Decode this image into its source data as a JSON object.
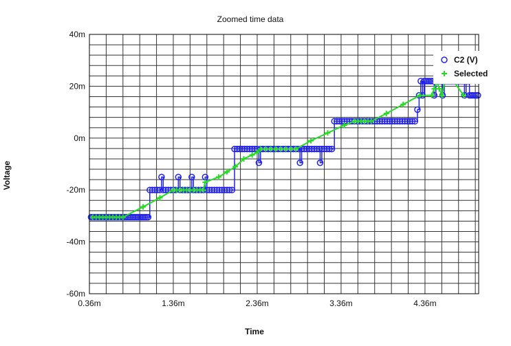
{
  "chart_data": {
    "type": "scatter",
    "title": "Zoomed time data",
    "xlabel": "Time",
    "ylabel": "Voltage",
    "xlim": [
      0.36,
      5.0
    ],
    "ylim": [
      -60,
      40
    ],
    "x_unit_suffix": "m",
    "y_unit_suffix": "m",
    "x_tick_labels": [
      "0.36m",
      "1.36m",
      "2.36m",
      "3.36m",
      "4.36m"
    ],
    "x_tick_values": [
      0.36,
      1.36,
      2.36,
      3.36,
      4.36
    ],
    "y_tick_labels": [
      "40m",
      "20m",
      "0m",
      "-20m",
      "-40m",
      "-60m"
    ],
    "y_tick_values": [
      40,
      20,
      0,
      -20,
      -40,
      -60
    ],
    "grid": true,
    "legend_position": "top-right",
    "colors": {
      "c2": "#2222ee",
      "selected": "#22dd22",
      "grid": "#333333"
    },
    "series": [
      {
        "name": "C2 (V)",
        "marker": "circle",
        "style": "line+markers",
        "points": [
          [
            0.38,
            -30.5
          ],
          [
            0.4,
            -30.5
          ],
          [
            0.42,
            -30.5
          ],
          [
            0.44,
            -30.5
          ],
          [
            0.46,
            -30.5
          ],
          [
            0.48,
            -30.5
          ],
          [
            0.5,
            -30.5
          ],
          [
            0.52,
            -30.5
          ],
          [
            0.54,
            -30.5
          ],
          [
            0.56,
            -30.5
          ],
          [
            0.58,
            -30.5
          ],
          [
            0.6,
            -30.5
          ],
          [
            0.62,
            -30.5
          ],
          [
            0.64,
            -30.5
          ],
          [
            0.66,
            -30.5
          ],
          [
            0.68,
            -30.5
          ],
          [
            0.7,
            -30.5
          ],
          [
            0.72,
            -30.5
          ],
          [
            0.74,
            -30.5
          ],
          [
            0.76,
            -30.5
          ],
          [
            0.78,
            -30.5
          ],
          [
            0.8,
            -30.5
          ],
          [
            0.82,
            -30.5
          ],
          [
            0.84,
            -30.5
          ],
          [
            0.86,
            -30.5
          ],
          [
            0.88,
            -30.5
          ],
          [
            0.9,
            -30.5
          ],
          [
            0.92,
            -30.5
          ],
          [
            0.94,
            -30.5
          ],
          [
            0.96,
            -30.5
          ],
          [
            0.98,
            -30.5
          ],
          [
            1.0,
            -30.5
          ],
          [
            1.02,
            -30.5
          ],
          [
            1.04,
            -30.5
          ],
          [
            1.06,
            -30.5
          ],
          [
            1.08,
            -20
          ],
          [
            1.11,
            -20
          ],
          [
            1.14,
            -20
          ],
          [
            1.17,
            -20
          ],
          [
            1.2,
            -20
          ],
          [
            1.22,
            -15
          ],
          [
            1.24,
            -20
          ],
          [
            1.27,
            -20
          ],
          [
            1.3,
            -20
          ],
          [
            1.33,
            -20
          ],
          [
            1.36,
            -20
          ],
          [
            1.39,
            -20
          ],
          [
            1.42,
            -15
          ],
          [
            1.44,
            -20
          ],
          [
            1.47,
            -20
          ],
          [
            1.5,
            -20
          ],
          [
            1.53,
            -20
          ],
          [
            1.56,
            -20
          ],
          [
            1.58,
            -15
          ],
          [
            1.6,
            -20
          ],
          [
            1.63,
            -20
          ],
          [
            1.66,
            -20
          ],
          [
            1.69,
            -20
          ],
          [
            1.72,
            -20
          ],
          [
            1.74,
            -15
          ],
          [
            1.76,
            -20
          ],
          [
            1.79,
            -20
          ],
          [
            1.82,
            -20
          ],
          [
            1.85,
            -20
          ],
          [
            1.88,
            -20
          ],
          [
            1.91,
            -20
          ],
          [
            1.94,
            -20
          ],
          [
            1.97,
            -20
          ],
          [
            2.0,
            -20
          ],
          [
            2.03,
            -20
          ],
          [
            2.06,
            -20
          ],
          [
            2.09,
            -4.2
          ],
          [
            2.12,
            -4.2
          ],
          [
            2.15,
            -4.2
          ],
          [
            2.18,
            -4.2
          ],
          [
            2.21,
            -4.2
          ],
          [
            2.24,
            -4.2
          ],
          [
            2.27,
            -4.2
          ],
          [
            2.3,
            -4.2
          ],
          [
            2.33,
            -4.2
          ],
          [
            2.36,
            -4.2
          ],
          [
            2.38,
            -9.5
          ],
          [
            2.4,
            -4.2
          ],
          [
            2.43,
            -4.2
          ],
          [
            2.46,
            -4.2
          ],
          [
            2.49,
            -4.2
          ],
          [
            2.52,
            -4.2
          ],
          [
            2.55,
            -4.2
          ],
          [
            2.58,
            -4.2
          ],
          [
            2.61,
            -4.2
          ],
          [
            2.64,
            -4.2
          ],
          [
            2.67,
            -4.2
          ],
          [
            2.7,
            -4.2
          ],
          [
            2.73,
            -4.2
          ],
          [
            2.76,
            -4.2
          ],
          [
            2.79,
            -4.2
          ],
          [
            2.82,
            -4.2
          ],
          [
            2.85,
            -4.2
          ],
          [
            2.87,
            -9.5
          ],
          [
            2.89,
            -4.2
          ],
          [
            2.92,
            -4.2
          ],
          [
            2.95,
            -4.2
          ],
          [
            2.98,
            -4.2
          ],
          [
            3.01,
            -4.2
          ],
          [
            3.04,
            -4.2
          ],
          [
            3.07,
            -4.2
          ],
          [
            3.1,
            -4.2
          ],
          [
            3.11,
            -9.5
          ],
          [
            3.13,
            -4.2
          ],
          [
            3.16,
            -4.2
          ],
          [
            3.19,
            -4.2
          ],
          [
            3.22,
            -4.2
          ],
          [
            3.25,
            -4.2
          ],
          [
            3.28,
            6.5
          ],
          [
            3.31,
            6.5
          ],
          [
            3.34,
            6.5
          ],
          [
            3.37,
            6.5
          ],
          [
            3.4,
            6.5
          ],
          [
            3.43,
            6.5
          ],
          [
            3.46,
            6.5
          ],
          [
            3.49,
            6.5
          ],
          [
            3.52,
            6.5
          ],
          [
            3.55,
            6.5
          ],
          [
            3.58,
            6.5
          ],
          [
            3.61,
            6.5
          ],
          [
            3.64,
            6.5
          ],
          [
            3.67,
            6.5
          ],
          [
            3.7,
            6.5
          ],
          [
            3.73,
            6.5
          ],
          [
            3.76,
            6.5
          ],
          [
            3.79,
            6.5
          ],
          [
            3.82,
            6.5
          ],
          [
            3.85,
            6.5
          ],
          [
            3.88,
            6.5
          ],
          [
            3.91,
            6.5
          ],
          [
            3.94,
            6.5
          ],
          [
            3.97,
            6.5
          ],
          [
            4.0,
            6.5
          ],
          [
            4.03,
            6.5
          ],
          [
            4.06,
            6.5
          ],
          [
            4.09,
            6.5
          ],
          [
            4.12,
            6.5
          ],
          [
            4.15,
            6.5
          ],
          [
            4.18,
            6.5
          ],
          [
            4.21,
            6.5
          ],
          [
            4.24,
            6.5
          ],
          [
            4.27,
            11
          ],
          [
            4.29,
            16.5
          ],
          [
            4.31,
            22
          ],
          [
            4.33,
            16.5
          ],
          [
            4.35,
            22
          ],
          [
            4.37,
            22
          ],
          [
            4.39,
            22
          ],
          [
            4.41,
            22
          ],
          [
            4.43,
            22
          ],
          [
            4.45,
            22
          ],
          [
            4.47,
            16.5
          ],
          [
            4.49,
            22
          ],
          [
            4.51,
            22
          ],
          [
            4.53,
            22
          ],
          [
            4.55,
            22
          ],
          [
            4.57,
            16.5
          ],
          [
            4.59,
            22
          ],
          [
            4.61,
            22
          ],
          [
            4.63,
            22
          ],
          [
            4.65,
            22
          ],
          [
            4.67,
            22
          ],
          [
            4.69,
            22
          ],
          [
            4.71,
            22
          ],
          [
            4.73,
            22
          ],
          [
            4.75,
            22
          ],
          [
            4.77,
            22
          ],
          [
            4.79,
            22
          ],
          [
            4.81,
            22
          ],
          [
            4.83,
            16.5
          ],
          [
            4.85,
            22
          ],
          [
            4.87,
            22
          ],
          [
            4.89,
            16.5
          ],
          [
            4.91,
            16.5
          ],
          [
            4.93,
            16.5
          ],
          [
            4.95,
            16.5
          ],
          [
            4.97,
            16.5
          ],
          [
            4.99,
            16.5
          ]
        ]
      },
      {
        "name": "Selected",
        "marker": "plus",
        "style": "line+markers",
        "points": [
          [
            0.4,
            -30.5
          ],
          [
            0.44,
            -30.5
          ],
          [
            0.48,
            -30.5
          ],
          [
            0.52,
            -30.5
          ],
          [
            0.56,
            -30.5
          ],
          [
            0.6,
            -30.5
          ],
          [
            0.64,
            -30.5
          ],
          [
            0.68,
            -30.5
          ],
          [
            0.72,
            -30.5
          ],
          [
            0.76,
            -30.5
          ],
          [
            1.0,
            -26.5
          ],
          [
            1.2,
            -23
          ],
          [
            1.36,
            -20
          ],
          [
            1.4,
            -20
          ],
          [
            1.44,
            -20
          ],
          [
            1.48,
            -20
          ],
          [
            1.52,
            -20
          ],
          [
            1.56,
            -20
          ],
          [
            1.6,
            -20
          ],
          [
            1.64,
            -20
          ],
          [
            1.68,
            -20
          ],
          [
            1.72,
            -20
          ],
          [
            1.74,
            -17
          ],
          [
            1.9,
            -15
          ],
          [
            2.0,
            -13
          ],
          [
            2.1,
            -11
          ],
          [
            2.2,
            -8
          ],
          [
            2.3,
            -6.5
          ],
          [
            2.36,
            -5.5
          ],
          [
            2.4,
            -4.2
          ],
          [
            2.46,
            -4.2
          ],
          [
            2.52,
            -4.2
          ],
          [
            2.58,
            -4.2
          ],
          [
            2.64,
            -4.2
          ],
          [
            2.7,
            -4.2
          ],
          [
            2.76,
            -4.2
          ],
          [
            2.82,
            -4.2
          ],
          [
            3.0,
            -1
          ],
          [
            3.2,
            2
          ],
          [
            3.4,
            5
          ],
          [
            3.52,
            6.5
          ],
          [
            3.56,
            6.5
          ],
          [
            3.6,
            6.5
          ],
          [
            3.64,
            6.5
          ],
          [
            3.68,
            6.5
          ],
          [
            3.72,
            6.5
          ],
          [
            3.9,
            9.5
          ],
          [
            4.1,
            13
          ],
          [
            4.3,
            16.5
          ],
          [
            4.44,
            16.5
          ],
          [
            4.47,
            19
          ],
          [
            4.5,
            22
          ],
          [
            4.53,
            19
          ],
          [
            4.56,
            16.5
          ],
          [
            4.6,
            22
          ],
          [
            4.64,
            22
          ],
          [
            4.7,
            22
          ],
          [
            4.82,
            16.5
          ]
        ]
      }
    ]
  }
}
